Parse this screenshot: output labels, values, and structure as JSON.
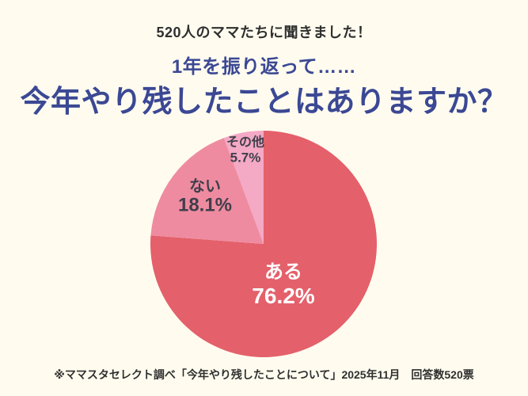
{
  "page": {
    "background": "#fffcef",
    "header_note": "520人のママたちに聞きました！",
    "subtitle": "1年を振り返って……",
    "title": "今年やり残したことはありますか？",
    "title_color": "#3b4894",
    "text_color": "#2f2f2f",
    "footer": "※ママスタセレクト調べ「今年やり残したことについて」2025年11月　回答数520票"
  },
  "chart_data": {
    "type": "pie",
    "title": "今年やり残したことはありますか？",
    "unit": "%",
    "total_responses": 520,
    "start_angle": "top",
    "direction": "clockwise",
    "legend_position": "none",
    "slices": [
      {
        "label": "ある",
        "value": 76.2,
        "display": "76.2%",
        "color": "#e4606b",
        "label_color": "#ffffff"
      },
      {
        "label": "ない",
        "value": 18.1,
        "display": "18.1%",
        "color": "#ef8ba0",
        "label_color": "#3f3f4b"
      },
      {
        "label": "その他",
        "value": 5.7,
        "display": "5.7%",
        "color": "#f4a9c5",
        "label_color": "#3f3f4b"
      }
    ]
  }
}
